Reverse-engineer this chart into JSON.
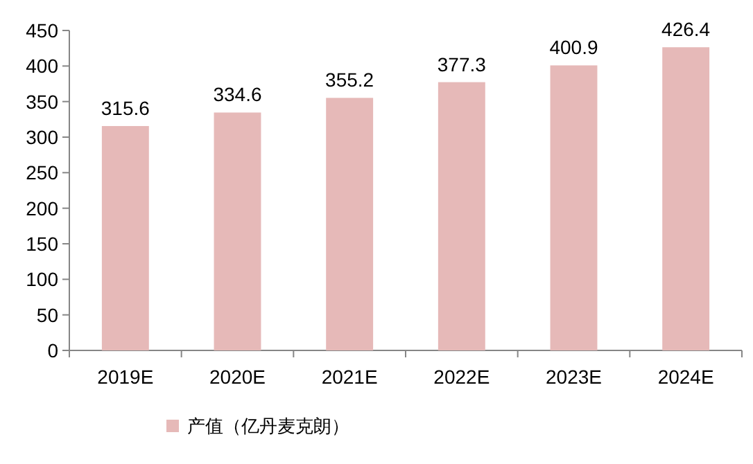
{
  "chart_data": {
    "type": "bar",
    "categories": [
      "2019E",
      "2020E",
      "2021E",
      "2022E",
      "2023E",
      "2024E"
    ],
    "series": [
      {
        "name": "产值（亿丹麦克朗）",
        "color": "#e6b9b8",
        "values": [
          315.6,
          334.6,
          355.2,
          377.3,
          400.9,
          426.4
        ]
      }
    ],
    "ylim": [
      0,
      450
    ],
    "yticks": [
      0,
      50,
      100,
      150,
      200,
      250,
      300,
      350,
      400,
      450
    ],
    "data_labels": true,
    "legend": "bottom",
    "grid": false
  }
}
